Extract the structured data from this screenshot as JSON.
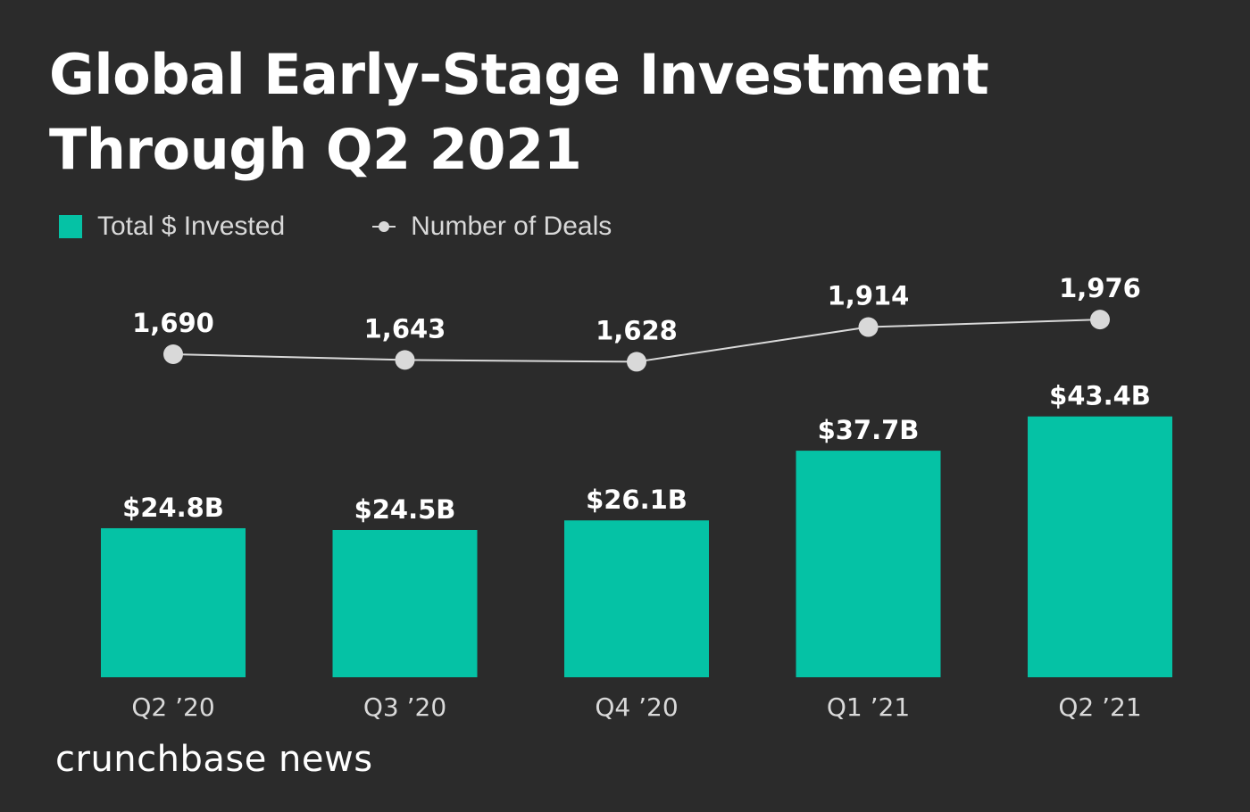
{
  "title": "Global Early-Stage Investment Through Q2 2021",
  "brand": "crunchbase news",
  "colors": {
    "background": "#2b2b2b",
    "bar": "#05c2a5",
    "line": "#d9d9d9",
    "text": "#ffffff",
    "axis_text": "#d9d9d9"
  },
  "legend": {
    "bar_label": "Total $ Invested",
    "line_label": "Number of Deals"
  },
  "chart_data": {
    "type": "bar",
    "title": "Global Early-Stage Investment Through Q2 2021",
    "categories": [
      "Q2 ’20",
      "Q3 ’20",
      "Q4 ’20",
      "Q1 ’21",
      "Q2 ’21"
    ],
    "series": [
      {
        "name": "Total $ Invested",
        "type": "bar",
        "unit": "billion USD",
        "values": [
          24.8,
          24.5,
          26.1,
          37.7,
          43.4
        ],
        "labels": [
          "$24.8B",
          "$24.5B",
          "$26.1B",
          "$37.7B",
          "$43.4B"
        ]
      },
      {
        "name": "Number of Deals",
        "type": "line",
        "values": [
          1690,
          1643,
          1628,
          1914,
          1976
        ],
        "labels": [
          "1,690",
          "1,643",
          "1,628",
          "1,914",
          "1,976"
        ]
      }
    ],
    "legend_position": "top-left",
    "grid": false
  }
}
